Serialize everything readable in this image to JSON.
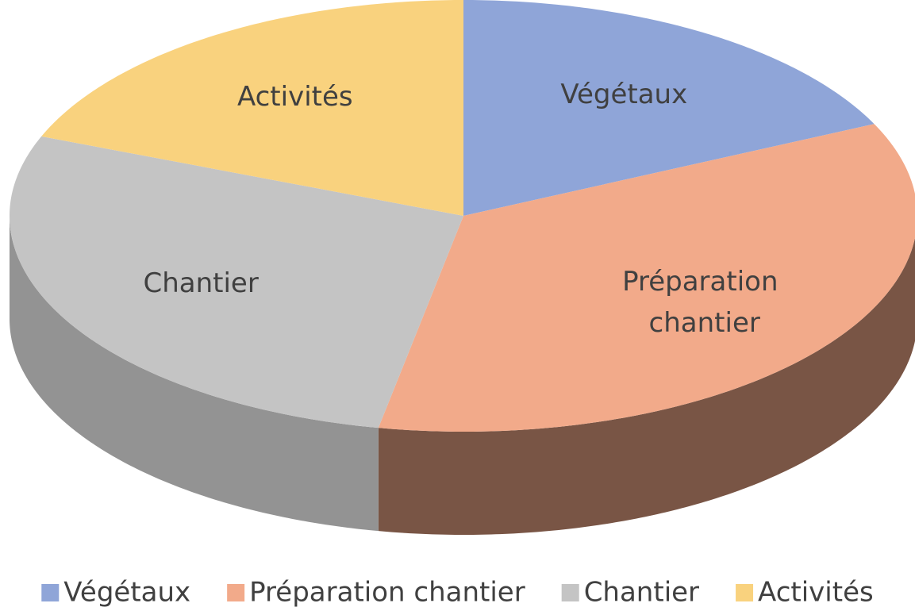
{
  "chart_data": {
    "type": "pie",
    "categories": [
      "Végétaux",
      "Préparation chantier",
      "Chantier",
      "Activités"
    ],
    "values": [
      18,
      35,
      28,
      19
    ],
    "colors": [
      "#8fa5d8",
      "#f2aa8a",
      "#c4c4c4",
      "#f9d27e"
    ],
    "legend": "bottom"
  }
}
